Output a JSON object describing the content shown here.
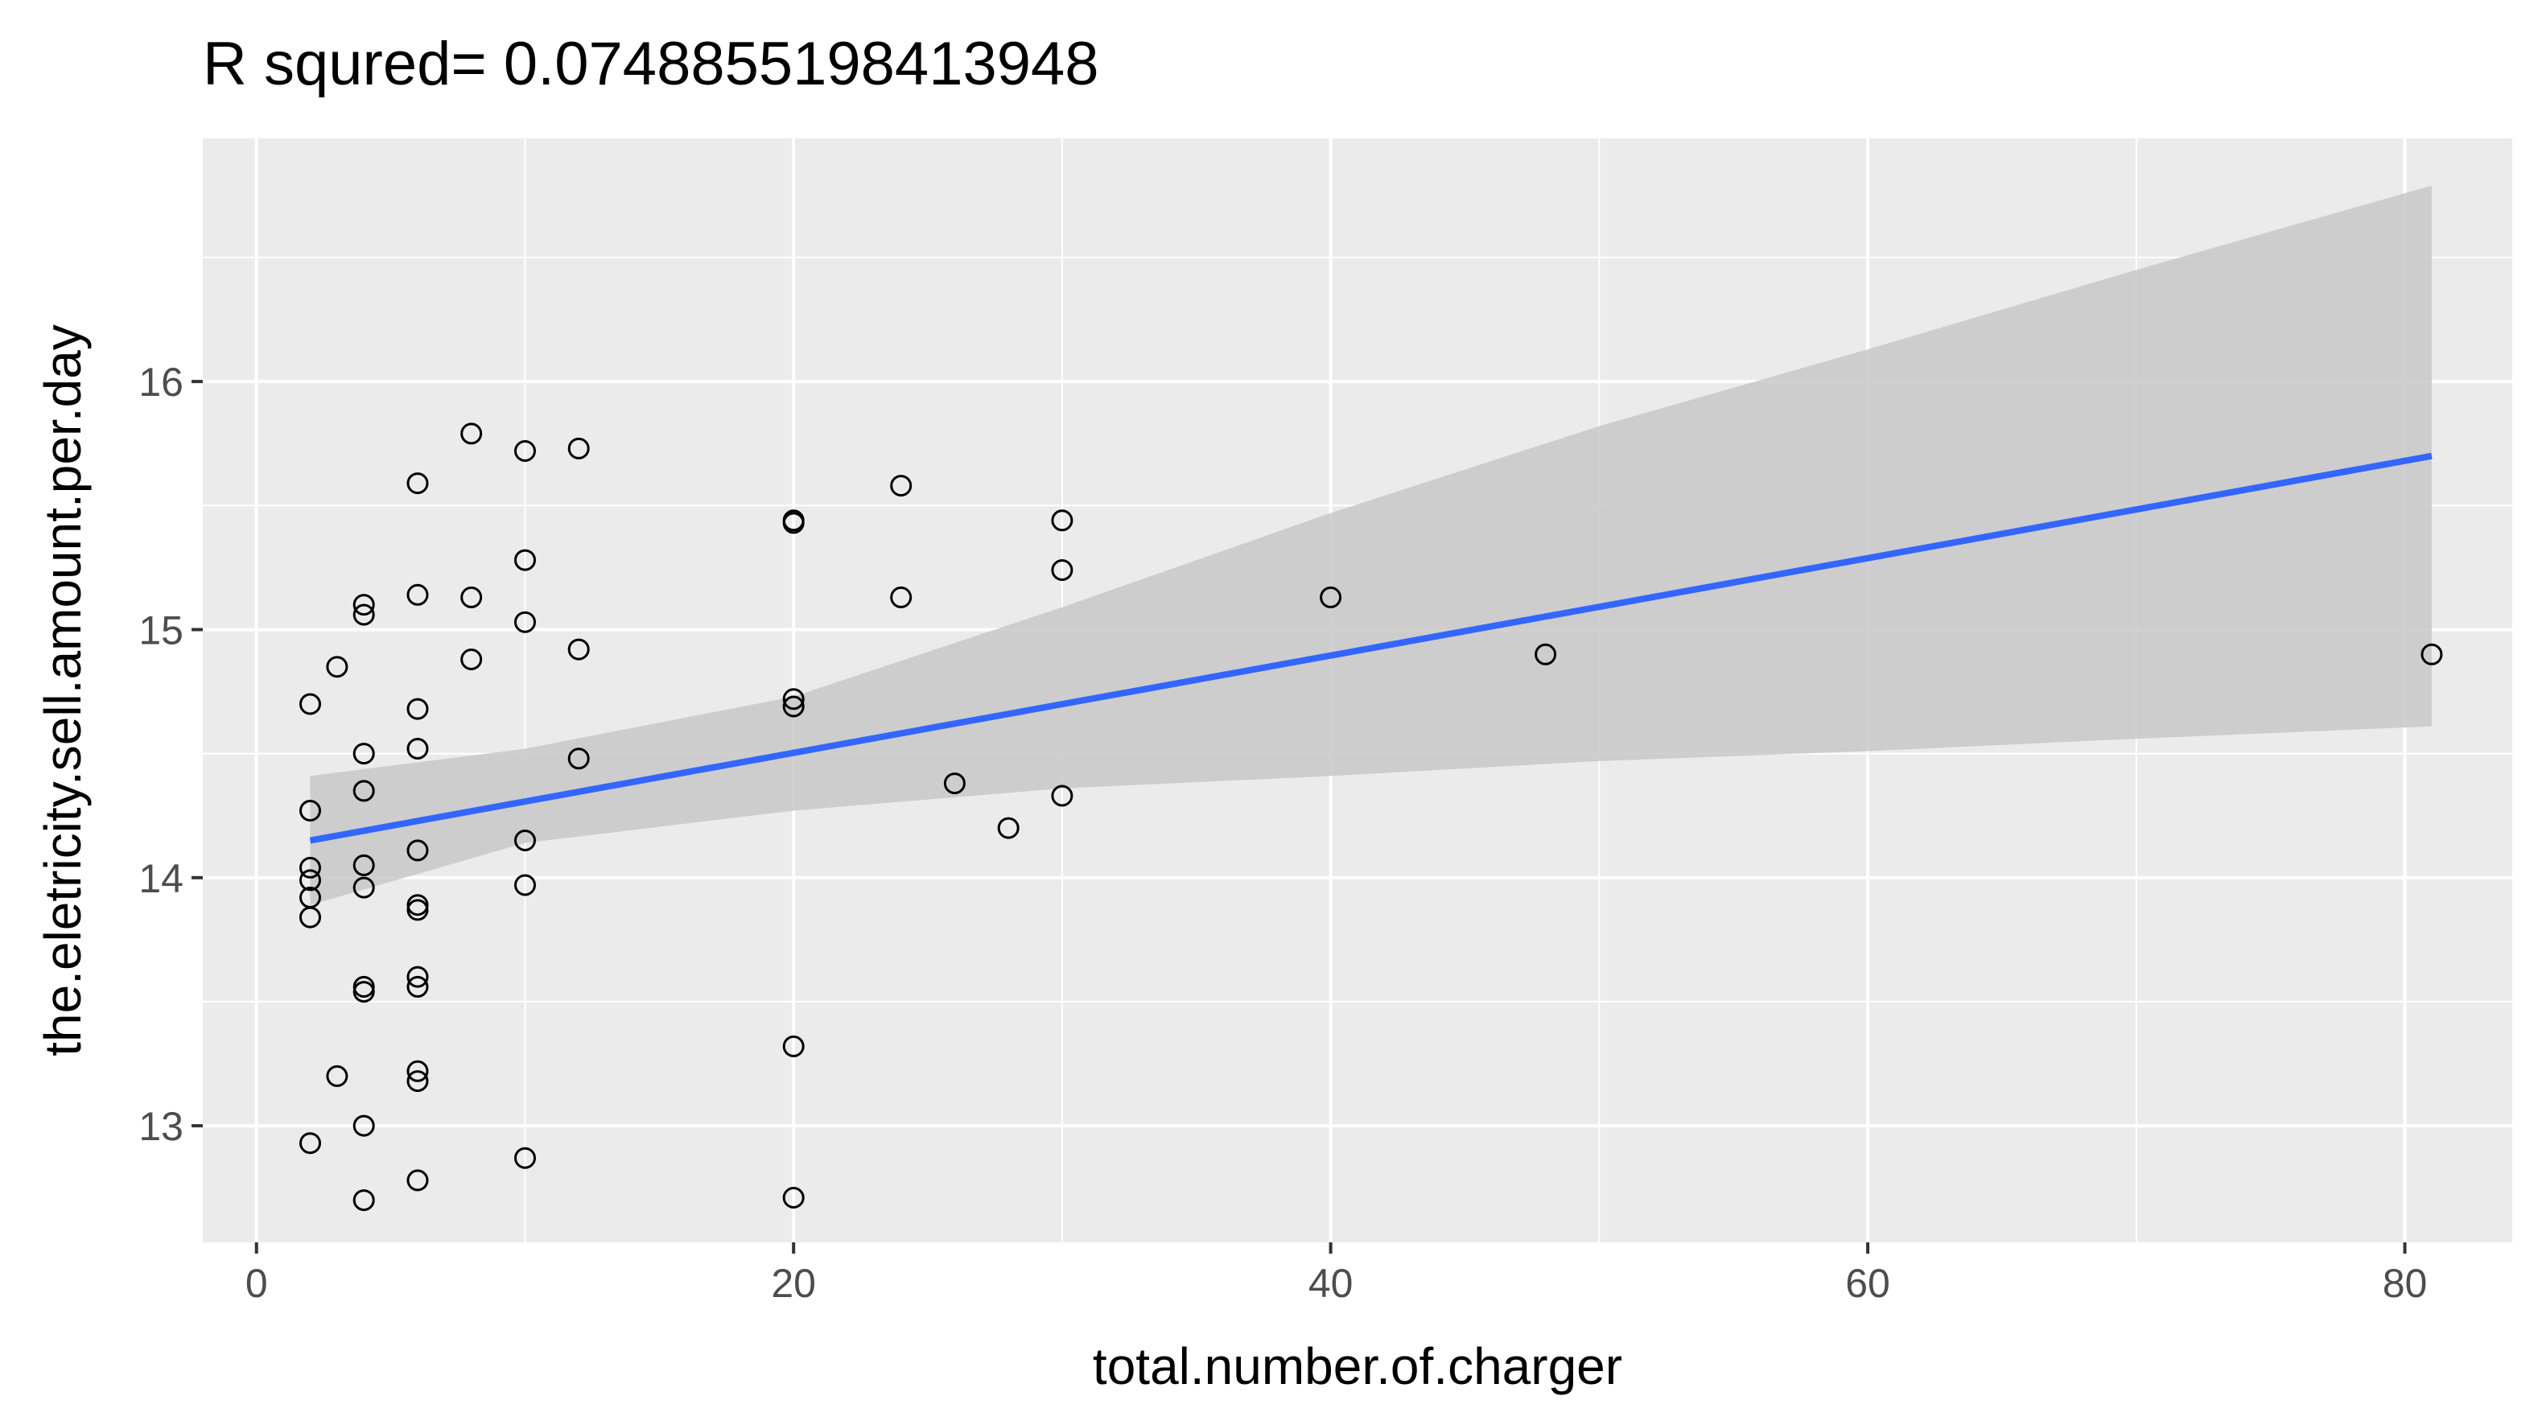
{
  "chart_data": {
    "type": "scatter",
    "title": "R squred= 0.0748855198413948",
    "xlabel": "total.number.of.charger",
    "ylabel": "the.eletricity.sell.amount.per.day",
    "xlim": [
      -2,
      84
    ],
    "ylim": [
      12.53,
      16.98
    ],
    "x_ticks": [
      0,
      20,
      40,
      60,
      80
    ],
    "x_tick_labels": [
      "0",
      "20",
      "40",
      "60",
      "80"
    ],
    "y_ticks": [
      13,
      14,
      15,
      16
    ],
    "y_tick_labels": [
      "13",
      "14",
      "15",
      "16"
    ],
    "grid": true,
    "legend": "none",
    "colors": {
      "panel_background": "#ebebeb",
      "grid": "#ffffff",
      "point_stroke": "#000000",
      "fit_line": "#3366ff",
      "confidence_band": "#c8c8c8",
      "tick_label": "#4d4d4d",
      "tick_mark": "#333333"
    },
    "points": [
      {
        "x": 2,
        "y": 14.7
      },
      {
        "x": 2,
        "y": 14.27
      },
      {
        "x": 2,
        "y": 14.04
      },
      {
        "x": 2,
        "y": 13.99
      },
      {
        "x": 2,
        "y": 13.92
      },
      {
        "x": 2,
        "y": 13.84
      },
      {
        "x": 2,
        "y": 12.93
      },
      {
        "x": 3,
        "y": 14.85
      },
      {
        "x": 3,
        "y": 13.2
      },
      {
        "x": 4,
        "y": 15.1
      },
      {
        "x": 4,
        "y": 15.06
      },
      {
        "x": 4,
        "y": 14.5
      },
      {
        "x": 4,
        "y": 14.35
      },
      {
        "x": 4,
        "y": 14.05
      },
      {
        "x": 4,
        "y": 13.96
      },
      {
        "x": 4,
        "y": 13.56
      },
      {
        "x": 4,
        "y": 13.54
      },
      {
        "x": 4,
        "y": 13.0
      },
      {
        "x": 4,
        "y": 12.7
      },
      {
        "x": 6,
        "y": 15.59
      },
      {
        "x": 6,
        "y": 15.14
      },
      {
        "x": 6,
        "y": 14.68
      },
      {
        "x": 6,
        "y": 14.52
      },
      {
        "x": 6,
        "y": 14.11
      },
      {
        "x": 6,
        "y": 13.89
      },
      {
        "x": 6,
        "y": 13.87
      },
      {
        "x": 6,
        "y": 13.6
      },
      {
        "x": 6,
        "y": 13.56
      },
      {
        "x": 6,
        "y": 13.22
      },
      {
        "x": 6,
        "y": 13.18
      },
      {
        "x": 6,
        "y": 12.78
      },
      {
        "x": 8,
        "y": 15.79
      },
      {
        "x": 8,
        "y": 15.13
      },
      {
        "x": 8,
        "y": 14.88
      },
      {
        "x": 10,
        "y": 15.72
      },
      {
        "x": 10,
        "y": 15.28
      },
      {
        "x": 10,
        "y": 15.03
      },
      {
        "x": 10,
        "y": 14.15
      },
      {
        "x": 10,
        "y": 13.97
      },
      {
        "x": 10,
        "y": 12.87
      },
      {
        "x": 12,
        "y": 15.73
      },
      {
        "x": 12,
        "y": 14.92
      },
      {
        "x": 12,
        "y": 14.48
      },
      {
        "x": 20,
        "y": 15.44
      },
      {
        "x": 20,
        "y": 15.43
      },
      {
        "x": 20,
        "y": 14.72
      },
      {
        "x": 20,
        "y": 14.69
      },
      {
        "x": 20,
        "y": 13.32
      },
      {
        "x": 20,
        "y": 12.71
      },
      {
        "x": 24,
        "y": 15.58
      },
      {
        "x": 24,
        "y": 15.13
      },
      {
        "x": 26,
        "y": 14.38
      },
      {
        "x": 28,
        "y": 14.2
      },
      {
        "x": 30,
        "y": 15.44
      },
      {
        "x": 30,
        "y": 15.24
      },
      {
        "x": 30,
        "y": 14.33
      },
      {
        "x": 40,
        "y": 15.13
      },
      {
        "x": 48,
        "y": 14.9
      },
      {
        "x": 81,
        "y": 14.9
      }
    ],
    "fit": {
      "x": [
        2,
        81
      ],
      "y": [
        14.15,
        15.7
      ]
    },
    "confidence_band": {
      "x": [
        2,
        10,
        20,
        30,
        40,
        50,
        60,
        70,
        81
      ],
      "upper": [
        14.41,
        14.52,
        14.73,
        15.09,
        15.47,
        15.82,
        16.13,
        16.45,
        16.79
      ],
      "lower": [
        13.89,
        14.14,
        14.27,
        14.36,
        14.41,
        14.47,
        14.51,
        14.56,
        14.61
      ]
    }
  }
}
